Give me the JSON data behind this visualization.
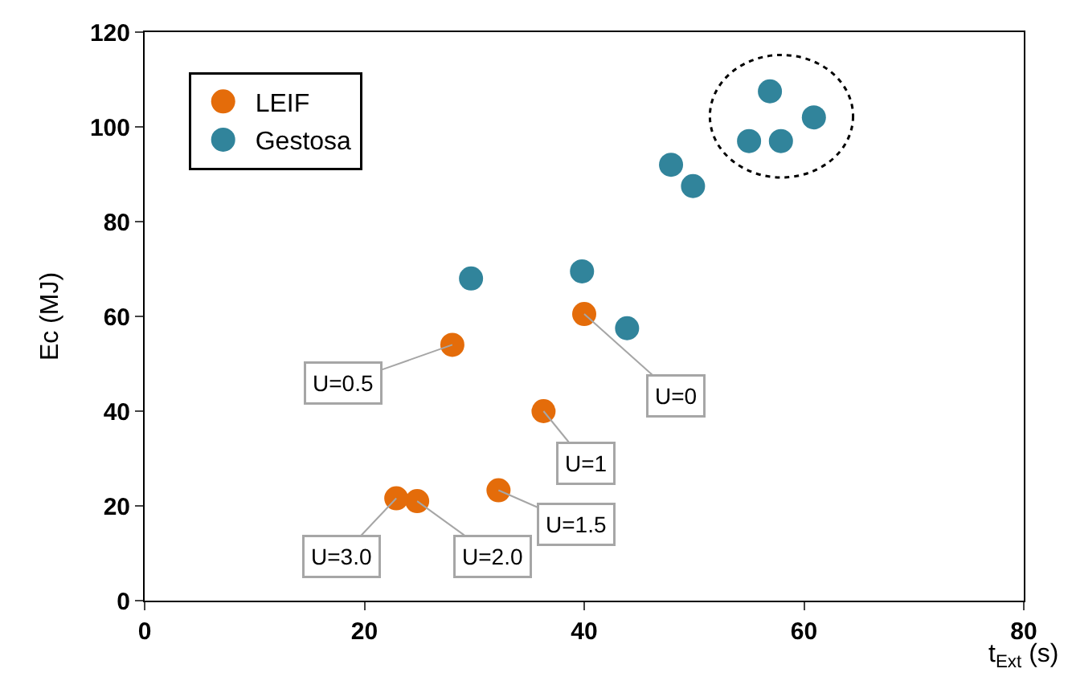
{
  "chart_data": {
    "type": "scatter",
    "xlabel": "t$_{Ext}$ (s)",
    "ylabel": "Ec (MJ)",
    "series": [
      {
        "name": "LEIF",
        "color": "#e46c0a",
        "x": [
          28,
          40,
          36.3,
          32.2,
          24.8,
          22.9
        ],
        "values": [
          54,
          60.5,
          40,
          23.3,
          21,
          21.6
        ]
      },
      {
        "name": "Gestosa",
        "color": "#31849b",
        "x": [
          29.7,
          39.8,
          43.9,
          47.9,
          49.9,
          55,
          56.9,
          57.9,
          60.9
        ],
        "values": [
          68,
          69.5,
          57.5,
          92,
          87.5,
          97,
          107.5,
          97,
          102
        ]
      }
    ],
    "annotations": [
      {
        "text": "U=0.5",
        "x": 28,
        "y": 54
      },
      {
        "text": "U=0",
        "x": 40,
        "y": 60.5
      },
      {
        "text": "U=1",
        "x": 36.3,
        "y": 40
      },
      {
        "text": "U=1.5",
        "x": 32.2,
        "y": 23.3
      },
      {
        "text": "U=2.0",
        "x": 24.8,
        "y": 21
      },
      {
        "text": "U=3.0",
        "x": 22.9,
        "y": 21.6
      }
    ],
    "xlim": [
      0,
      80
    ],
    "xticks": [
      0,
      20,
      40,
      60,
      80
    ],
    "ylim": [
      0,
      120
    ],
    "yticks": [
      0,
      20,
      40,
      60,
      80,
      100,
      120
    ],
    "legend": "top left",
    "marker": "circle"
  }
}
